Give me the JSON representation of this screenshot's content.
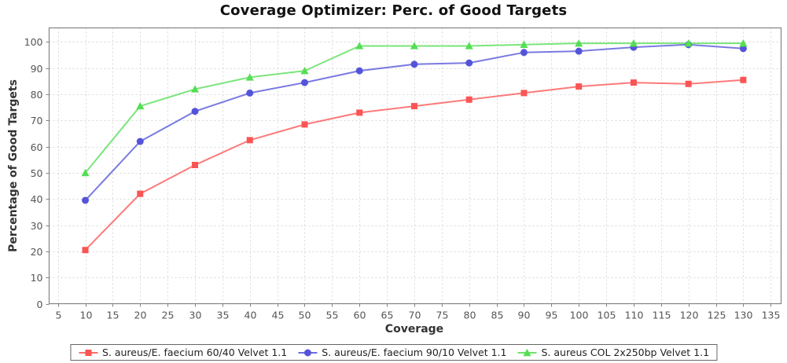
{
  "title": "Coverage Optimizer: Perc. of Good Targets",
  "chart_data": {
    "type": "line",
    "title": "Coverage Optimizer: Perc. of Good Targets",
    "xlabel": "Coverage",
    "ylabel": "Percentage of Good Targets",
    "x": [
      10,
      20,
      30,
      40,
      50,
      60,
      70,
      80,
      90,
      100,
      110,
      120,
      130
    ],
    "series": [
      {
        "name": "S. aureus/E. faecium 60/40 Velvet 1.1",
        "color": "#fb5454",
        "marker": "square",
        "values": [
          20.5,
          42,
          53,
          62.5,
          68.5,
          73,
          75.5,
          78,
          80.5,
          83,
          84.5,
          84,
          85.5
        ]
      },
      {
        "name": "S. aureus/E. faecium 90/10 Velvet 1.1",
        "color": "#5454da",
        "marker": "circle",
        "values": [
          39.5,
          62,
          73.5,
          80.5,
          84.5,
          89,
          91.5,
          92,
          96,
          96.5,
          98,
          99,
          97.5
        ]
      },
      {
        "name": "S. aureus COL 2x250bp Velvet 1.1",
        "color": "#54de54",
        "marker": "triangle",
        "values": [
          50,
          75.5,
          82,
          86.5,
          89,
          98.5,
          98.5,
          98.5,
          99,
          99.5,
          99.5,
          99.5,
          99.5
        ]
      }
    ],
    "x_ticks": [
      5,
      10,
      15,
      20,
      25,
      30,
      35,
      40,
      45,
      50,
      55,
      60,
      65,
      70,
      75,
      80,
      85,
      90,
      95,
      100,
      105,
      110,
      115,
      120,
      125,
      130,
      135
    ],
    "y_ticks": [
      0,
      10,
      20,
      30,
      40,
      50,
      60,
      70,
      80,
      90,
      100
    ],
    "xlim": [
      3.4,
      136.9
    ],
    "ylim": [
      0,
      105.4
    ],
    "grid": true,
    "legend_position": "bottom",
    "colors": {
      "grid": "#d9d9d9",
      "axis": "#848484",
      "tick_label": "#555555",
      "title_text": "#111111",
      "legend_border": "#666666",
      "background": "#ffffff"
    }
  }
}
